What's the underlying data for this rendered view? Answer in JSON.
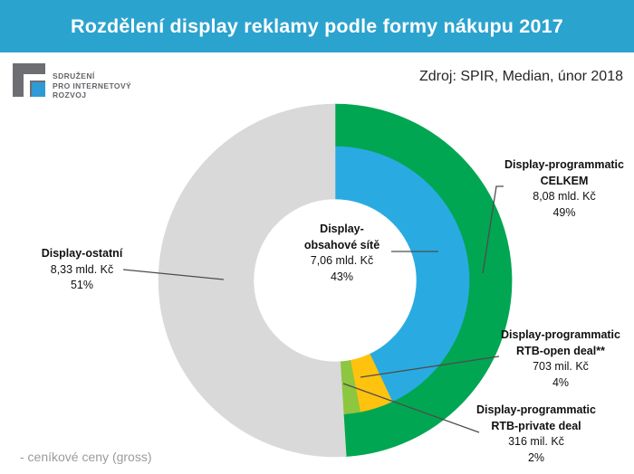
{
  "title": "Rozdělení display reklamy podle formy nákupu 2017",
  "source_note": "Zdroj: SPIR, Median, únor 2018",
  "footnote": "- ceníkové ceny (gross)",
  "logo": {
    "lines": [
      "SDRUŽENÍ",
      "PRO INTERNETOVÝ",
      "ROZVOJ"
    ]
  },
  "colors": {
    "title_bar": "#2ba3cf",
    "green": "#00a651",
    "blue": "#29abe2",
    "yellow": "#ffc20e",
    "light_green": "#8dc63f",
    "gray": "#d9d9d9",
    "leader_line": "#4d4d4d",
    "logo_gray": "#6d6e71",
    "logo_blue": "#2e9bd6"
  },
  "chart_data": {
    "type": "pie",
    "subtype": "two-level-donut",
    "title": "Rozdělení display reklamy podle formy nákupu 2017",
    "direction": "clockwise",
    "start_angle_deg": 0,
    "units": "Kč (gross, ceníkové ceny)",
    "outer_ring": [
      {
        "label": "Display-programmatic CELKEM",
        "amount_text": "8,08 mld. Kč",
        "value_czk_bn": 8.08,
        "percent": 49,
        "color": "#00a651"
      },
      {
        "label": "Display-ostatní",
        "amount_text": "8,33 mld. Kč",
        "value_czk_bn": 8.33,
        "percent": 51,
        "color": "#d9d9d9"
      }
    ],
    "inner_ring": [
      {
        "label": "Display-obsahové sítě",
        "amount_text": "7,06 mld. Kč",
        "value_czk_bn": 7.06,
        "percent": 43,
        "color": "#29abe2"
      },
      {
        "label": "Display-programmatic RTB-open deal**",
        "amount_text": "703 mil. Kč",
        "value_czk_bn": 0.703,
        "percent": 4,
        "color": "#ffc20e"
      },
      {
        "label": "Display-programmatic RTB-private deal",
        "amount_text": "316 mil. Kč",
        "value_czk_bn": 0.316,
        "percent": 2,
        "color": "#8dc63f"
      },
      {
        "label": "Display-ostatní",
        "amount_text": "8,33 mld. Kč",
        "value_czk_bn": 8.33,
        "percent": 51,
        "color": "#d9d9d9"
      }
    ]
  },
  "callouts": {
    "ostatni": {
      "line1": "Display-ostatní",
      "amount": "8,33 mld. Kč",
      "percent": "51%"
    },
    "obsahove": {
      "line1": "Display-",
      "line2": "obsahové sítě",
      "amount": "7,06 mld. Kč",
      "percent": "43%"
    },
    "celkem": {
      "line1": "Display-programmatic",
      "line2": "CELKEM",
      "amount": "8,08 mld. Kč",
      "percent": "49%"
    },
    "open_deal": {
      "line1": "Display-programmatic",
      "line2": "RTB-open deal**",
      "amount": "703 mil. Kč",
      "percent": "4%"
    },
    "private_deal": {
      "line1": "Display-programmatic",
      "line2": "RTB-private deal",
      "amount": "316 mil. Kč",
      "percent": "2%"
    }
  }
}
